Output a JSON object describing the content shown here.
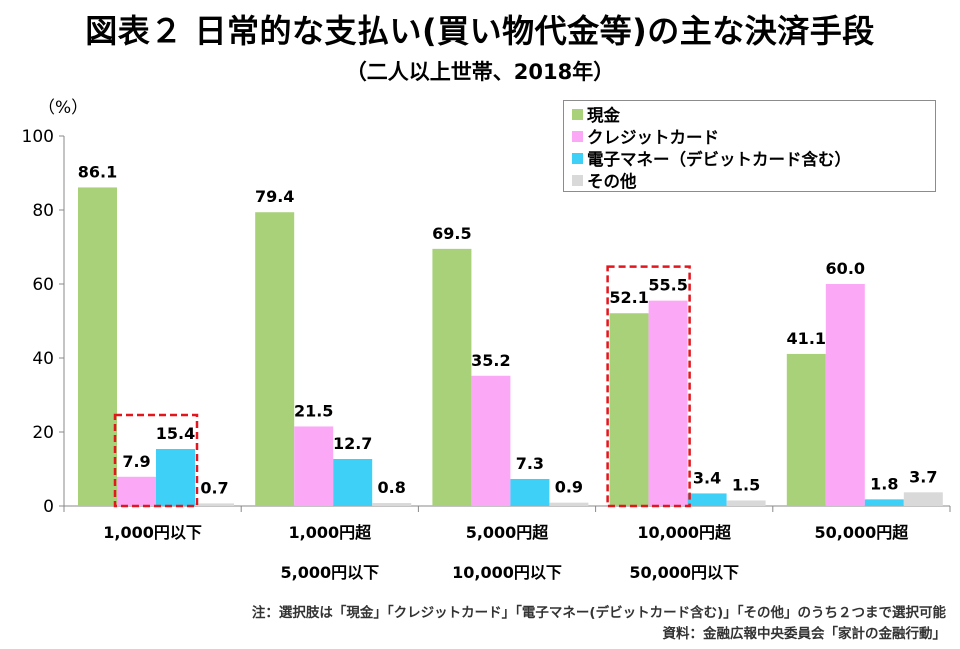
{
  "header": {
    "title": "図表２ 日常的な支払い(買い物代金等)の主な決済手段",
    "subtitle": "（二人以上世帯、2018年）",
    "unit": "（%）"
  },
  "legend": {
    "items": [
      {
        "label": "現金",
        "color": "#a9d17a"
      },
      {
        "label": "クレジットカード",
        "color": "#fba8f7"
      },
      {
        "label": "電子マネー（デビットカード含む）",
        "color": "#3fd0f7"
      },
      {
        "label": "その他",
        "color": "#d9d9d9"
      }
    ]
  },
  "chart_data": {
    "type": "bar",
    "ylabel": "（%）",
    "ylim": [
      0,
      100
    ],
    "yticks": [
      "0",
      "20",
      "40",
      "60",
      "80",
      "100"
    ],
    "grid": false,
    "legend_position": "top-right",
    "categories": [
      {
        "line1": "1,000円以下",
        "line2": ""
      },
      {
        "line1": "1,000円超",
        "line2": "5,000円以下"
      },
      {
        "line1": "5,000円超",
        "line2": "10,000円以下"
      },
      {
        "line1": "10,000円超",
        "line2": "50,000円以下"
      },
      {
        "line1": "50,000円超",
        "line2": ""
      }
    ],
    "series": [
      {
        "name": "現金",
        "color": "#a9d17a",
        "values": [
          86.1,
          79.4,
          69.5,
          52.1,
          41.1
        ],
        "labels": [
          "86.1",
          "79.4",
          "69.5",
          "52.1",
          "41.1"
        ]
      },
      {
        "name": "クレジットカード",
        "color": "#fba8f7",
        "values": [
          7.9,
          21.5,
          35.2,
          55.5,
          60.0
        ],
        "labels": [
          "7.9",
          "21.5",
          "35.2",
          "55.5",
          "60.0"
        ]
      },
      {
        "name": "電子マネー（デビットカード含む）",
        "color": "#3fd0f7",
        "values": [
          15.4,
          12.7,
          7.3,
          3.4,
          1.8
        ],
        "labels": [
          "15.4",
          "12.7",
          "7.3",
          "3.4",
          "1.8"
        ]
      },
      {
        "name": "その他",
        "color": "#d9d9d9",
        "values": [
          0.7,
          0.8,
          0.9,
          1.5,
          3.7
        ],
        "labels": [
          "0.7",
          "0.8",
          "0.9",
          "1.5",
          "3.7"
        ]
      }
    ],
    "highlights": [
      {
        "category": 0,
        "series": [
          1,
          2
        ]
      },
      {
        "category": 3,
        "series": [
          0,
          1
        ]
      }
    ]
  },
  "notes": {
    "note": "注：選択肢は「現金」「クレジットカード」「電子マネー(デビットカード含む)」「その他」のうち２つまで選択可能",
    "source": "資料：金融広報中央委員会「家計の金融行動」"
  }
}
